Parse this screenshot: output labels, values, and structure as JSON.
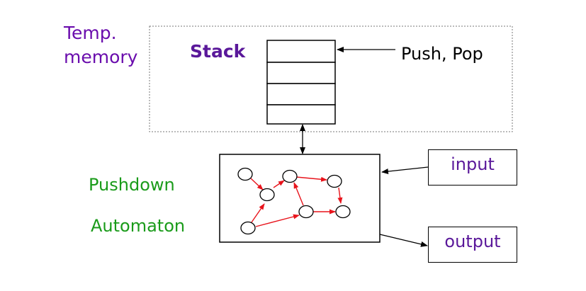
{
  "labels": {
    "temp_line1": "Temp.",
    "temp_line2": "memory",
    "stack": "Stack",
    "push_pop": "Push, Pop",
    "pda_line1": "Pushdown",
    "pda_line2": "Automaton",
    "input": "input",
    "output": "output"
  },
  "colors": {
    "temp_label": "#6a0dad",
    "stack_label": "#5a189a",
    "pda_label": "#1a9b1a",
    "io_text": "#5a189a",
    "automaton_edges": "#e8141c"
  },
  "automaton": {
    "states": [
      "s1",
      "s2",
      "s3",
      "s4",
      "s5",
      "s6",
      "s7"
    ],
    "edges": [
      [
        "s1",
        "s2"
      ],
      [
        "s2",
        "s3"
      ],
      [
        "s3",
        "s4"
      ],
      [
        "s4",
        "s6"
      ],
      [
        "s7",
        "s2"
      ],
      [
        "s7",
        "s5"
      ],
      [
        "s5",
        "s3"
      ],
      [
        "s5",
        "s6"
      ]
    ]
  }
}
